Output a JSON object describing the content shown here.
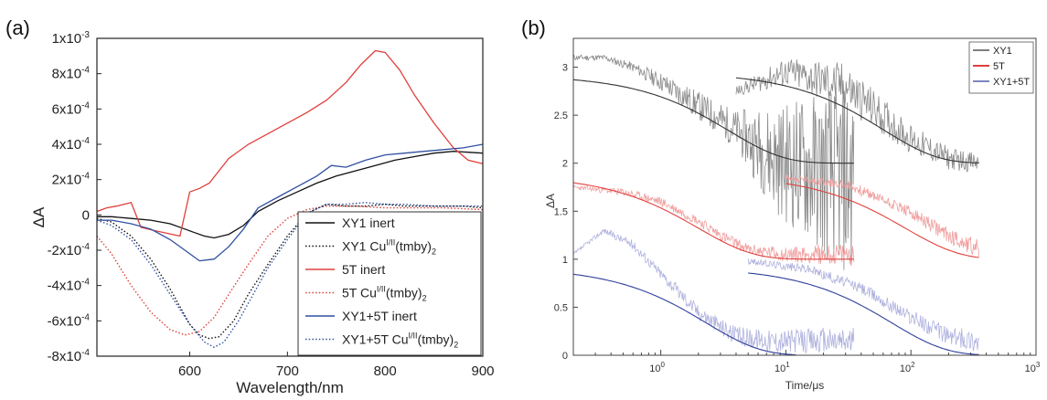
{
  "chart_data": [
    {
      "panel": "(a)",
      "type": "line",
      "xlabel": "Wavelength/nm",
      "ylabel": "ΔA",
      "xlim": [
        505,
        900
      ],
      "ylim": [
        -0.0008,
        0.001
      ],
      "xticks": [
        600,
        700,
        800,
        900
      ],
      "xtick_labels": [
        "600",
        "700",
        "800",
        "900"
      ],
      "yticks": [
        0.001,
        0.0008,
        0.0006,
        0.0004,
        0.0002,
        0,
        -0.0002,
        -0.0004,
        -0.0006,
        -0.0008
      ],
      "ytick_labels_main": [
        "1x10",
        "8x10",
        "6x10",
        "4x10",
        "2x10",
        "0",
        "-2x10",
        "-4x10",
        "-6x10",
        "-8x10"
      ],
      "ytick_labels_exp": [
        "-3",
        "-4",
        "-4",
        "-4",
        "-4",
        "",
        "-4",
        "-4",
        "-4",
        "-4"
      ],
      "legend_position": "lower-right",
      "series": [
        {
          "name_main": "XY1 inert",
          "name_sup": "",
          "name_tail": "",
          "name_sub": "",
          "color": "#111111",
          "dash": "solid",
          "points": [
            [
              505,
              -1e-05
            ],
            [
              520,
              -1e-05
            ],
            [
              540,
              -2e-05
            ],
            [
              560,
              -3e-05
            ],
            [
              580,
              -5e-05
            ],
            [
              595,
              -8e-05
            ],
            [
              605,
              -0.0001
            ],
            [
              615,
              -0.00012
            ],
            [
              625,
              -0.00013
            ],
            [
              640,
              -0.00011
            ],
            [
              655,
              -6e-05
            ],
            [
              670,
              2e-05
            ],
            [
              690,
              8e-05
            ],
            [
              710,
              0.00013
            ],
            [
              730,
              0.00018
            ],
            [
              750,
              0.00022
            ],
            [
              770,
              0.00025
            ],
            [
              790,
              0.00028
            ],
            [
              810,
              0.00031
            ],
            [
              830,
              0.00033
            ],
            [
              850,
              0.00035
            ],
            [
              870,
              0.00036
            ],
            [
              900,
              0.00035
            ]
          ]
        },
        {
          "name_main": "XY1 Cu",
          "name_sup": "I/II",
          "name_tail": "(tmby)",
          "name_sub": "2",
          "color": "#111111",
          "dash": "dotted",
          "points": [
            [
              505,
              -2e-05
            ],
            [
              520,
              -4e-05
            ],
            [
              540,
              -0.00012
            ],
            [
              560,
              -0.00025
            ],
            [
              580,
              -0.00042
            ],
            [
              600,
              -0.00062
            ],
            [
              610,
              -0.00068
            ],
            [
              620,
              -0.0007
            ],
            [
              630,
              -0.00069
            ],
            [
              645,
              -0.0006
            ],
            [
              660,
              -0.00045
            ],
            [
              680,
              -0.00028
            ],
            [
              700,
              -0.00012
            ],
            [
              720,
              1e-05
            ],
            [
              740,
              6e-05
            ],
            [
              760,
              5e-05
            ],
            [
              780,
              5e-05
            ],
            [
              800,
              6e-05
            ],
            [
              820,
              5e-05
            ],
            [
              850,
              5e-05
            ],
            [
              880,
              5e-05
            ],
            [
              900,
              4e-05
            ]
          ]
        },
        {
          "name_main": "5T inert",
          "name_sup": "",
          "name_tail": "",
          "name_sub": "",
          "color": "#e0403c",
          "dash": "solid",
          "points": [
            [
              505,
              2e-05
            ],
            [
              515,
              4e-05
            ],
            [
              525,
              5e-05
            ],
            [
              540,
              7e-05
            ],
            [
              550,
              -7e-05
            ],
            [
              565,
              -9e-05
            ],
            [
              590,
              -0.00012
            ],
            [
              600,
              0.00013
            ],
            [
              610,
              0.00015
            ],
            [
              620,
              0.00018
            ],
            [
              640,
              0.00032
            ],
            [
              660,
              0.0004
            ],
            [
              680,
              0.00046
            ],
            [
              700,
              0.00052
            ],
            [
              720,
              0.00058
            ],
            [
              740,
              0.00065
            ],
            [
              760,
              0.00075
            ],
            [
              775,
              0.00085
            ],
            [
              790,
              0.00093
            ],
            [
              800,
              0.00092
            ],
            [
              815,
              0.00082
            ],
            [
              830,
              0.00068
            ],
            [
              850,
              0.00052
            ],
            [
              870,
              0.00038
            ],
            [
              885,
              0.00031
            ],
            [
              900,
              0.00029
            ]
          ]
        },
        {
          "name_main": "5T Cu",
          "name_sup": "I/II",
          "name_tail": "(tmby)",
          "name_sub": "2",
          "color": "#e0403c",
          "dash": "dotted",
          "points": [
            [
              505,
              -0.00012
            ],
            [
              520,
              -0.00022
            ],
            [
              540,
              -0.0004
            ],
            [
              560,
              -0.00055
            ],
            [
              580,
              -0.00065
            ],
            [
              595,
              -0.00068
            ],
            [
              610,
              -0.00066
            ],
            [
              625,
              -0.00058
            ],
            [
              640,
              -0.00045
            ],
            [
              660,
              -0.00028
            ],
            [
              680,
              -0.00012
            ],
            [
              700,
              -2e-05
            ],
            [
              720,
              3e-05
            ],
            [
              740,
              5e-05
            ],
            [
              770,
              5e-05
            ],
            [
              800,
              4e-05
            ],
            [
              830,
              4e-05
            ],
            [
              860,
              4e-05
            ],
            [
              900,
              3e-05
            ]
          ]
        },
        {
          "name_main": "XY1+5T inert",
          "name_sup": "",
          "name_tail": "",
          "name_sub": "",
          "color": "#2f4f9f",
          "dash": "solid",
          "points": [
            [
              505,
              -3e-05
            ],
            [
              520,
              -3e-05
            ],
            [
              540,
              -5e-05
            ],
            [
              560,
              -8e-05
            ],
            [
              580,
              -0.00014
            ],
            [
              595,
              -0.0002
            ],
            [
              610,
              -0.00026
            ],
            [
              625,
              -0.00025
            ],
            [
              640,
              -0.00018
            ],
            [
              655,
              -8e-05
            ],
            [
              670,
              4e-05
            ],
            [
              690,
              0.0001
            ],
            [
              710,
              0.00016
            ],
            [
              730,
              0.00022
            ],
            [
              745,
              0.00028
            ],
            [
              760,
              0.00027
            ],
            [
              780,
              0.00031
            ],
            [
              800,
              0.00034
            ],
            [
              820,
              0.00035
            ],
            [
              840,
              0.00036
            ],
            [
              860,
              0.00037
            ],
            [
              880,
              0.00038
            ],
            [
              900,
              0.0004
            ]
          ]
        },
        {
          "name_main": "XY1+5T Cu",
          "name_sup": "I/II",
          "name_tail": "(tmby)",
          "name_sub": "2",
          "color": "#2f4f9f",
          "dash": "dotted",
          "points": [
            [
              505,
              -3e-05
            ],
            [
              520,
              -6e-05
            ],
            [
              540,
              -0.00014
            ],
            [
              560,
              -0.00028
            ],
            [
              580,
              -0.00045
            ],
            [
              600,
              -0.00062
            ],
            [
              615,
              -0.00072
            ],
            [
              625,
              -0.00075
            ],
            [
              635,
              -0.00072
            ],
            [
              650,
              -0.0006
            ],
            [
              665,
              -0.00045
            ],
            [
              680,
              -0.0003
            ],
            [
              700,
              -0.00014
            ],
            [
              720,
              1e-05
            ],
            [
              740,
              6e-05
            ],
            [
              760,
              6e-05
            ],
            [
              780,
              7e-05
            ],
            [
              800,
              6e-05
            ],
            [
              820,
              6e-05
            ],
            [
              850,
              5e-05
            ],
            [
              880,
              5e-05
            ],
            [
              900,
              5e-05
            ]
          ]
        }
      ]
    },
    {
      "panel": "(b)",
      "type": "line",
      "xlabel": "Time/μs",
      "ylabel": "ΔA",
      "xscale": "log",
      "xlim": [
        0.2,
        1000
      ],
      "ylim": [
        0,
        3.3
      ],
      "xticks": [
        1,
        10,
        100,
        1000
      ],
      "xtick_main": [
        "10",
        "10",
        "10",
        "10"
      ],
      "xtick_exp": [
        "0",
        "1",
        "2",
        "3"
      ],
      "yticks": [
        0,
        0.5,
        1,
        1.5,
        2,
        2.5,
        3
      ],
      "ytick_labels": [
        "0",
        "0.5",
        "1",
        "1.5",
        "2",
        "2.5",
        "3"
      ],
      "legend_position": "top-right",
      "series": [
        {
          "name": "XY1",
          "color": "#8a8a8a",
          "fit_color": "#333333",
          "seed": 11,
          "data_early": {
            "x": [
              0.2,
              0.35,
              0.6,
              1.0,
              2.0,
              4.0,
              8.0,
              20.0,
              35.0
            ],
            "y": [
              3.1,
              3.1,
              3.0,
              2.85,
              2.6,
              2.35,
              2.05,
              1.9,
              1.85
            ],
            "noise": [
              0.03,
              0.03,
              0.05,
              0.1,
              0.15,
              0.2,
              0.55,
              0.9,
              1.1
            ]
          },
          "data_late": {
            "x": [
              4.0,
              10.0,
              30.0,
              100.0,
              200.0,
              350.0
            ],
            "y": [
              2.75,
              2.95,
              2.8,
              2.25,
              2.05,
              2.0
            ],
            "noise": [
              0.05,
              0.15,
              0.25,
              0.15,
              0.12,
              0.1
            ]
          },
          "fit_early": {
            "A": 0.92,
            "tau": 3.5,
            "base": 2.0,
            "start": 0.2,
            "end": 35
          },
          "fit_late": {
            "A": 0.95,
            "tau": 60,
            "base": 2.0,
            "start": 4.0,
            "end": 350
          }
        },
        {
          "name": "5T",
          "color": "#f0a0a0",
          "fit_color": "#e0403c",
          "seed": 23,
          "data_early": {
            "x": [
              0.2,
              0.5,
              1.0,
              2.0,
              3.0,
              5.0,
              10.0,
              20.0,
              35.0
            ],
            "y": [
              1.75,
              1.7,
              1.6,
              1.4,
              1.25,
              1.1,
              1.05,
              1.05,
              1.05
            ],
            "noise": [
              0.02,
              0.04,
              0.05,
              0.05,
              0.06,
              0.06,
              0.08,
              0.1,
              0.12
            ]
          },
          "data_late": {
            "x": [
              10.0,
              30.0,
              80.0,
              200.0,
              350.0
            ],
            "y": [
              1.85,
              1.78,
              1.55,
              1.25,
              1.1
            ],
            "noise": [
              0.03,
              0.05,
              0.06,
              0.08,
              0.1
            ]
          },
          "fit_early": {
            "A": 0.88,
            "tau": 2.0,
            "base": 1.0,
            "start": 0.2,
            "end": 35
          },
          "fit_late": {
            "A": 0.88,
            "tau": 90,
            "base": 1.0,
            "start": 10.0,
            "end": 350
          }
        },
        {
          "name": "XY1+5T",
          "color": "#b0b2de",
          "fit_color": "#2f3f9a",
          "seed": 37,
          "data_early": {
            "x": [
              0.2,
              0.35,
              0.6,
              1.0,
              2.0,
              4.0,
              8.0,
              20.0,
              35.0
            ],
            "y": [
              1.05,
              1.3,
              1.15,
              0.85,
              0.45,
              0.2,
              0.15,
              0.15,
              0.15
            ],
            "noise": [
              0.02,
              0.03,
              0.05,
              0.06,
              0.08,
              0.1,
              0.12,
              0.14,
              0.15
            ]
          },
          "data_late": {
            "x": [
              5.0,
              15.0,
              40.0,
              100.0,
              200.0,
              350.0
            ],
            "y": [
              0.98,
              0.9,
              0.7,
              0.4,
              0.2,
              0.15
            ],
            "noise": [
              0.03,
              0.05,
              0.06,
              0.08,
              0.1,
              0.12
            ]
          },
          "fit_early": {
            "A": 0.92,
            "tau": 2.3,
            "base": 0.0,
            "start": 0.2,
            "end": 12
          },
          "fit_late": {
            "A": 0.92,
            "tau": 70,
            "base": 0.0,
            "start": 5.0,
            "end": 350
          }
        }
      ]
    }
  ]
}
